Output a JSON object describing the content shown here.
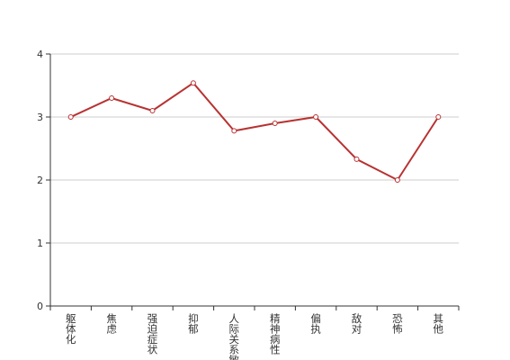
{
  "chart_data": {
    "type": "line",
    "categories": [
      "躯体化",
      "焦虑",
      "强迫症状",
      "抑郁",
      "人际关系敏感",
      "精神病性",
      "偏执",
      "敌对",
      "恐怖",
      "其他"
    ],
    "values": [
      3.0,
      3.3,
      3.1,
      3.54,
      2.78,
      2.9,
      3.0,
      2.33,
      2.0,
      3.0
    ],
    "color": "#b83232",
    "ylim": [
      0,
      4
    ],
    "yticks": [
      0,
      1,
      2,
      3,
      4
    ],
    "grid": true
  }
}
